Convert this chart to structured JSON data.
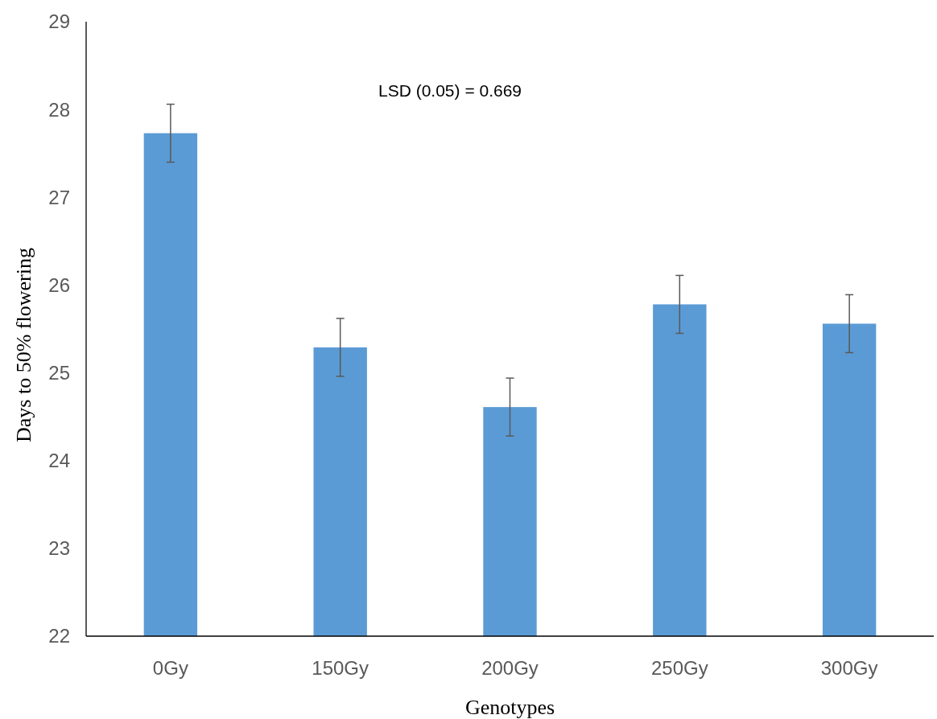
{
  "chart_data": {
    "type": "bar",
    "xlabel": "Genotypes",
    "ylabel": "Days to 50% flowering",
    "categories": [
      "0Gy",
      "150Gy",
      "200Gy",
      "250Gy",
      "300Gy"
    ],
    "values": [
      27.73,
      25.29,
      24.61,
      25.78,
      25.56
    ],
    "errors": [
      0.33,
      0.33,
      0.33,
      0.33,
      0.33
    ],
    "color": "#5b9bd5",
    "ylim": [
      22,
      29
    ],
    "yticks": [
      22,
      23,
      24,
      25,
      26,
      27,
      28,
      29
    ],
    "annotations": [
      "LSD (0.05) = 0.669"
    ]
  }
}
